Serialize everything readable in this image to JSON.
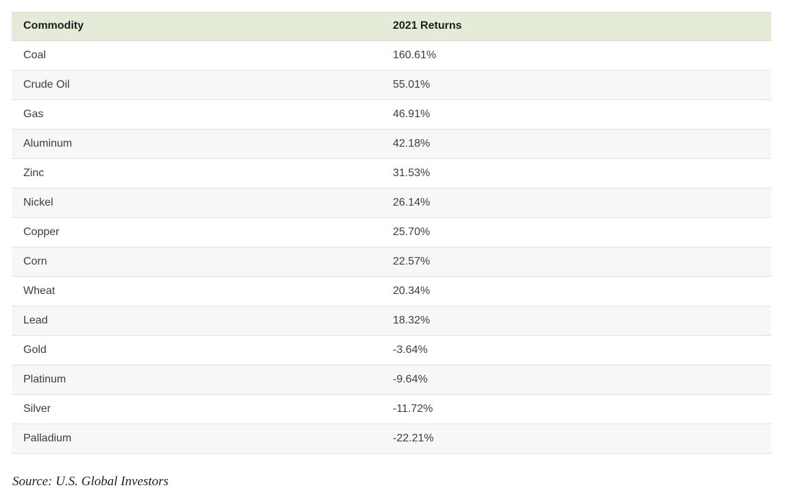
{
  "table": {
    "columns": [
      "Commodity",
      "2021 Returns"
    ],
    "rows": [
      {
        "commodity": "Coal",
        "return": "160.61%"
      },
      {
        "commodity": "Crude Oil",
        "return": "55.01%"
      },
      {
        "commodity": "Gas",
        "return": "46.91%"
      },
      {
        "commodity": "Aluminum",
        "return": "42.18%"
      },
      {
        "commodity": "Zinc",
        "return": "31.53%"
      },
      {
        "commodity": "Nickel",
        "return": "26.14%"
      },
      {
        "commodity": "Copper",
        "return": "25.70%"
      },
      {
        "commodity": "Corn",
        "return": "22.57%"
      },
      {
        "commodity": "Wheat",
        "return": "20.34%"
      },
      {
        "commodity": "Lead",
        "return": "18.32%"
      },
      {
        "commodity": "Gold",
        "return": "-3.64%"
      },
      {
        "commodity": "Platinum",
        "return": "-9.64%"
      },
      {
        "commodity": "Silver",
        "return": "-11.72%"
      },
      {
        "commodity": "Palladium",
        "return": "-22.21%"
      }
    ]
  },
  "source": "Source: U.S. Global Investors",
  "colors": {
    "header_bg": "#e4ebd8",
    "stripe_bg": "#f7f7f7",
    "row_border": "#e0e0e0",
    "header_text": "#1d1d1d",
    "body_text": "#3c3c3c"
  },
  "chart_data": {
    "type": "table",
    "title": "",
    "columns": [
      "Commodity",
      "2021 Returns"
    ],
    "categories": [
      "Coal",
      "Crude Oil",
      "Gas",
      "Aluminum",
      "Zinc",
      "Nickel",
      "Copper",
      "Corn",
      "Wheat",
      "Lead",
      "Gold",
      "Platinum",
      "Silver",
      "Palladium"
    ],
    "values": [
      160.61,
      55.01,
      46.91,
      42.18,
      31.53,
      26.14,
      25.7,
      22.57,
      20.34,
      18.32,
      -3.64,
      -9.64,
      -11.72,
      -22.21
    ],
    "value_unit": "%",
    "source": "Source: U.S. Global Investors"
  }
}
